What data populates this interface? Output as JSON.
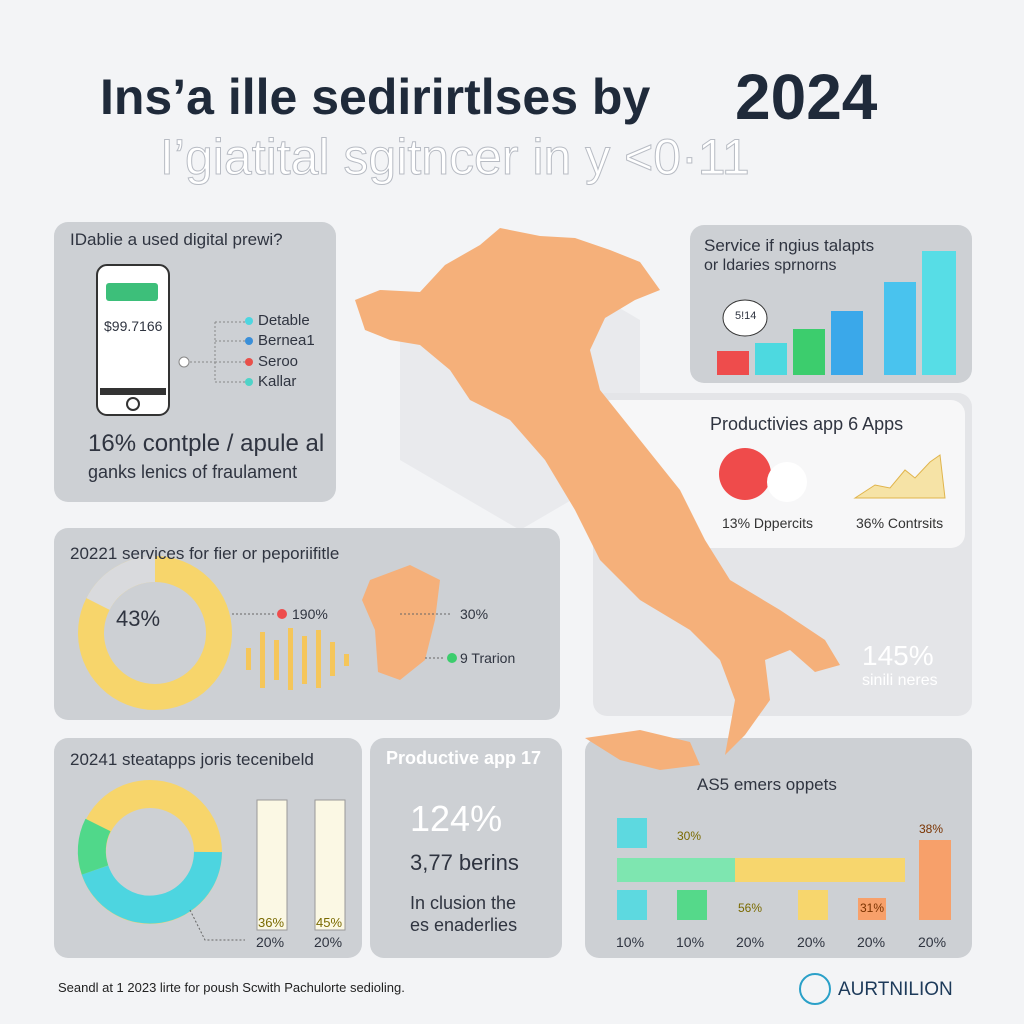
{
  "header": {
    "title": "Ins’a ille sedirirtlses by",
    "year": "2024",
    "subtitle": "I’giatital sgitncer in y <0·11"
  },
  "phone_panel": {
    "title": "IDablie a used digital prewi?",
    "screen_value": "$99.7166",
    "legend": [
      "Detable",
      "Bernea1",
      "Seroo",
      "Kallar"
    ],
    "stat": "16% contple / apule al",
    "caption": "ganks lenics of fraulament"
  },
  "service_panel": {
    "title": "Service if ngius talapts",
    "subtitle": "or ldaries sprnorns",
    "bubble": "5!14"
  },
  "productivity_panel": {
    "title": "Productivies app 6 Apps",
    "left_label": "13% Dppercits",
    "right_label": "36% Contrsits",
    "big_stat": "145%",
    "big_caption": "sinili neres"
  },
  "services_panel": {
    "title": "20221 services for fier or peporiifitle",
    "donut_label": "43%",
    "label_a": "190%",
    "label_b": "30%",
    "label_c": "9 Trarion"
  },
  "apps_panel": {
    "title": "20241 steatapps joris tecenibeld",
    "bar_labels": [
      "36%",
      "45%"
    ],
    "axis_labels": [
      "20%",
      "20%"
    ]
  },
  "app17_panel": {
    "title": "Productive app 17",
    "stat": "124%",
    "sub": "3,77 berins",
    "caption_1": "In clusion the",
    "caption_2": "es enaderlies"
  },
  "emers_panel": {
    "title": "AS5 emers oppets",
    "labels": [
      "30%",
      "56%",
      "31%",
      "38%"
    ],
    "axis_labels": [
      "10%",
      "10%",
      "20%",
      "20%",
      "20%",
      "20%"
    ]
  },
  "footer": {
    "note": "Seandl at 1 2023 lirte for poush Scwith Pachulorte sedioling.",
    "brand": "AURTNILION"
  }
}
